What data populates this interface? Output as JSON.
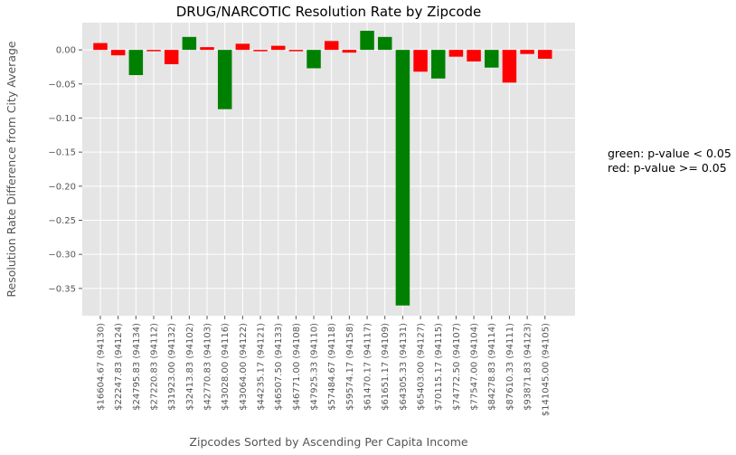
{
  "chart_data": {
    "type": "bar",
    "title": "DRUG/NARCOTIC Resolution Rate by Zipcode",
    "xlabel": "Zipcodes Sorted by Ascending Per Capita Income",
    "ylabel": "Resolution Rate Difference from City Average",
    "ylim": [
      -0.39,
      0.04
    ],
    "yticks": [
      0.0,
      -0.05,
      -0.1,
      -0.15,
      -0.2,
      -0.25,
      -0.3,
      -0.35
    ],
    "ytick_labels": [
      "0.00",
      "−0.05",
      "−0.10",
      "−0.15",
      "−0.20",
      "−0.25",
      "−0.30",
      "−0.35"
    ],
    "grid": true,
    "categories": [
      "$16604.67  (94130)",
      "$22247.83  (94124)",
      "$24795.83  (94134)",
      "$27220.83  (94112)",
      "$31923.00  (94132)",
      "$32413.83  (94102)",
      "$42770.83  (94103)",
      "$43028.00  (94116)",
      "$43064.00  (94122)",
      "$44235.17  (94121)",
      "$46507.50  (94133)",
      "$46771.00  (94108)",
      "$47925.33  (94110)",
      "$57484.67  (94118)",
      "$59574.17  (94158)",
      "$61470.17  (94117)",
      "$61651.17  (94109)",
      "$64305.33  (94131)",
      "$65403.00  (94127)",
      "$70115.17  (94115)",
      "$74772.50  (94107)",
      "$77547.00  (94104)",
      "$84278.83  (94114)",
      "$87610.33  (94111)",
      "$93871.83  (94123)",
      "$141045.00  (94105)"
    ],
    "values": [
      0.01,
      -0.008,
      -0.037,
      -0.002,
      -0.021,
      0.019,
      0.004,
      -0.087,
      0.009,
      -0.002,
      0.006,
      -0.002,
      -0.027,
      0.013,
      -0.004,
      0.028,
      0.019,
      -0.375,
      -0.032,
      -0.042,
      -0.01,
      -0.017,
      -0.026,
      -0.048,
      -0.006,
      -0.013
    ],
    "significant": [
      false,
      false,
      true,
      false,
      false,
      true,
      false,
      true,
      false,
      false,
      false,
      false,
      true,
      false,
      false,
      true,
      true,
      true,
      false,
      true,
      false,
      false,
      true,
      false,
      false,
      false
    ],
    "colors": {
      "significant": "#008000",
      "not_significant": "#ff0000",
      "plot_bg": "#e5e5e5",
      "grid": "#ffffff"
    },
    "annotation": [
      "green: p-value < 0.05",
      "red: p-value >= 0.05"
    ]
  }
}
